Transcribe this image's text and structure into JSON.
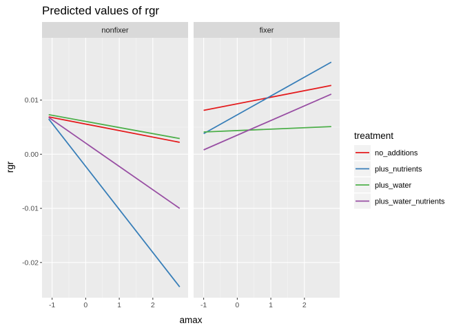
{
  "chart_data": {
    "type": "line",
    "title": "Predicted values of rgr",
    "xlabel": "amax",
    "ylabel": "rgr",
    "xlim": [
      -1.3,
      3.05
    ],
    "ylim": [
      -0.0265,
      0.0215
    ],
    "x_ticks": [
      -1,
      0,
      1,
      2
    ],
    "x_tick_labels": [
      "-1",
      "0",
      "1",
      "2"
    ],
    "y_ticks": [
      -0.02,
      -0.01,
      0.0,
      0.01
    ],
    "y_tick_labels": [
      "-0.02",
      "-0.01",
      "0.00",
      "0.01"
    ],
    "grid": true,
    "legend": {
      "title": "treatment",
      "position": "right"
    },
    "colors": {
      "no_additions": "#e41a1c",
      "plus_nutrients": "#377eb8",
      "plus_water": "#4daf4a",
      "plus_water_nutrients": "#984ea3"
    },
    "panels": [
      {
        "label": "nonfixer",
        "series": [
          {
            "name": "no_additions",
            "x": [
              -1.1,
              2.8
            ],
            "y": [
              0.0069,
              0.0022
            ]
          },
          {
            "name": "plus_nutrients",
            "x": [
              -1.1,
              2.8
            ],
            "y": [
              0.0065,
              -0.0245
            ]
          },
          {
            "name": "plus_water",
            "x": [
              -1.1,
              2.8
            ],
            "y": [
              0.0073,
              0.0029
            ]
          },
          {
            "name": "plus_water_nutrients",
            "x": [
              -1.1,
              2.8
            ],
            "y": [
              0.0068,
              -0.01
            ]
          }
        ]
      },
      {
        "label": "fixer",
        "series": [
          {
            "name": "no_additions",
            "x": [
              -1.0,
              2.8
            ],
            "y": [
              0.0081,
              0.0127
            ]
          },
          {
            "name": "plus_nutrients",
            "x": [
              -1.0,
              2.8
            ],
            "y": [
              0.0038,
              0.017
            ]
          },
          {
            "name": "plus_water",
            "x": [
              -1.0,
              2.8
            ],
            "y": [
              0.0041,
              0.0051
            ]
          },
          {
            "name": "plus_water_nutrients",
            "x": [
              -1.0,
              2.8
            ],
            "y": [
              0.0008,
              0.0111
            ]
          }
        ]
      }
    ]
  }
}
